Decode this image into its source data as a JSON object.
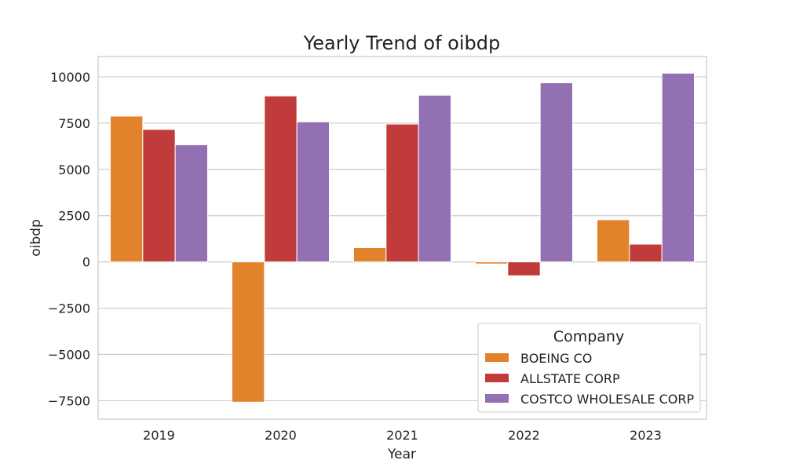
{
  "chart_data": {
    "type": "bar",
    "title": "Yearly Trend of oibdp",
    "xlabel": "Year",
    "ylabel": "oibdp",
    "categories": [
      "2019",
      "2020",
      "2021",
      "2022",
      "2023"
    ],
    "y_ticks": [
      -7500,
      -5000,
      -2500,
      0,
      2500,
      5000,
      7500,
      10000
    ],
    "y_tick_labels": [
      "−7500",
      "−5000",
      "−2500",
      "0",
      "2500",
      "5000",
      "7500",
      "10000"
    ],
    "ylim": [
      -8500,
      11100
    ],
    "grid": true,
    "legend": {
      "title": "Company",
      "position": "lower-right"
    },
    "series": [
      {
        "name": "BOEING CO",
        "color": "#e2832c",
        "values": [
          7880,
          -7580,
          770,
          -110,
          2280
        ]
      },
      {
        "name": "ALLSTATE CORP",
        "color": "#c23b3b",
        "values": [
          7160,
          8970,
          7450,
          -750,
          960
        ]
      },
      {
        "name": "COSTCO WHOLESALE CORP",
        "color": "#9370b2",
        "values": [
          6330,
          7570,
          9010,
          9680,
          10200
        ]
      }
    ]
  }
}
